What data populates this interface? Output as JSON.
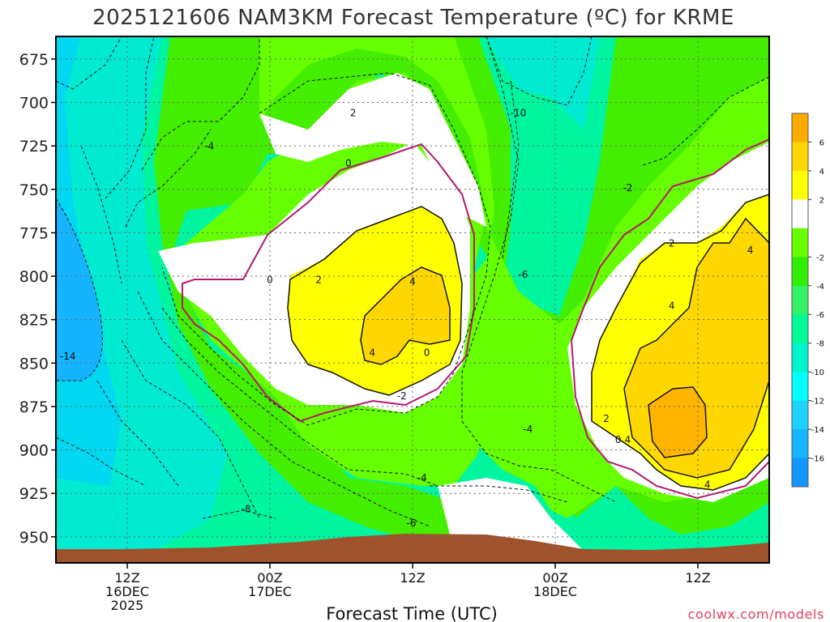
{
  "chart_data": {
    "type": "contour",
    "title": "2025121606 NAM3KM Forecast Temperature (ºC) for KRME",
    "xlabel": "Forecast Time (UTC)",
    "ylabel": "",
    "credit": "coolwx.com/models",
    "x_ticks": [
      {
        "hour": 6,
        "lines": [
          "12Z",
          "16DEC",
          "2025"
        ]
      },
      {
        "hour": 18,
        "lines": [
          "00Z",
          "17DEC"
        ]
      },
      {
        "hour": 30,
        "lines": [
          "12Z"
        ]
      },
      {
        "hour": 42,
        "lines": [
          "00Z",
          "18DEC"
        ]
      },
      {
        "hour": 54,
        "lines": [
          "12Z"
        ]
      }
    ],
    "xlim": [
      0,
      60
    ],
    "y_ticks": [
      675,
      700,
      725,
      750,
      775,
      800,
      825,
      850,
      875,
      900,
      925,
      950
    ],
    "ylim": [
      662,
      965
    ],
    "colorbar": {
      "levels": [
        -18,
        -16,
        -14,
        -12,
        -10,
        -8,
        -6,
        -4,
        -2,
        0,
        2,
        4,
        6,
        8
      ],
      "labels": [
        "-16",
        "-14",
        "-12",
        "-10",
        "-8",
        "-6",
        "-4",
        "-2",
        "2",
        "4",
        "6"
      ],
      "colors": [
        "#1496ff",
        "#14b4ff",
        "#1ed2ff",
        "#00ffff",
        "#00f5cd",
        "#00fa96",
        "#33f066",
        "#33ee00",
        "#66ff00",
        "#ffffff",
        "#ffff00",
        "#ffd700",
        "#ffaa00"
      ]
    },
    "contour_labels": [
      {
        "text": "2",
        "hour": 25.0,
        "p": 707
      },
      {
        "text": "-10",
        "hour": 38.9,
        "p": 707
      },
      {
        "text": "-4",
        "hour": 12.9,
        "p": 726
      },
      {
        "text": "0",
        "hour": 24.6,
        "p": 736
      },
      {
        "text": "-2",
        "hour": 48.1,
        "p": 750
      },
      {
        "text": "2",
        "hour": 51.8,
        "p": 782
      },
      {
        "text": "4",
        "hour": 58.4,
        "p": 786
      },
      {
        "text": "0",
        "hour": 18.0,
        "p": 803
      },
      {
        "text": "2",
        "hour": 22.1,
        "p": 803
      },
      {
        "text": "-6",
        "hour": 39.3,
        "p": 800
      },
      {
        "text": "4",
        "hour": 30.0,
        "p": 804
      },
      {
        "text": "4",
        "hour": 51.8,
        "p": 818
      },
      {
        "text": "0",
        "hour": 31.2,
        "p": 845
      },
      {
        "text": "4",
        "hour": 26.6,
        "p": 845
      },
      {
        "text": "-14",
        "hour": 1.0,
        "p": 847
      },
      {
        "text": "-2",
        "hour": 29.1,
        "p": 870
      },
      {
        "text": "-4",
        "hour": 39.7,
        "p": 889
      },
      {
        "text": "2",
        "hour": 46.3,
        "p": 883
      },
      {
        "text": "0",
        "hour": 47.3,
        "p": 895
      },
      {
        "text": "4",
        "hour": 48.1,
        "p": 895
      },
      {
        "text": "-4",
        "hour": 30.8,
        "p": 917
      },
      {
        "text": "4",
        "hour": 54.8,
        "p": 921
      },
      {
        "text": "-8",
        "hour": 16.0,
        "p": 935
      },
      {
        "text": "-6",
        "hour": 29.9,
        "p": 943
      }
    ]
  }
}
